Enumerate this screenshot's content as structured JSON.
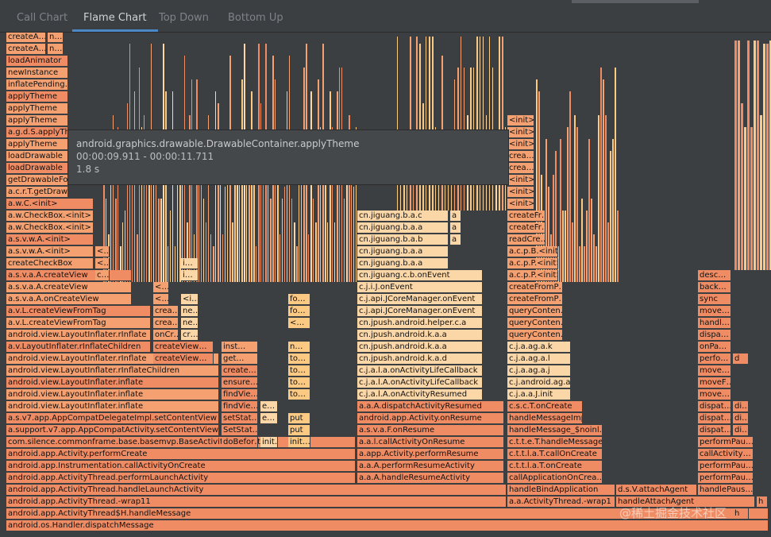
{
  "tabs": [
    {
      "label": "Call Chart",
      "active": false
    },
    {
      "label": "Flame Chart",
      "active": true
    },
    {
      "label": "Top Down",
      "active": false
    },
    {
      "label": "Bottom Up",
      "active": false
    }
  ],
  "tooltip": {
    "method": "android.graphics.drawable.DrawableContainer.applyTheme",
    "range": "00:00:09.911 - 00:00:11.711",
    "duration": "1.8 s"
  },
  "colors": {
    "frame_dark": "#f08c63",
    "frame_medium": "#f4a070",
    "frame_light": "#fbd7a8",
    "background": "#3c3f41",
    "tab_accent": "#4a88c7"
  },
  "frames": {
    "col_a": [
      "createA…",
      "createA…",
      "createA…",
      "loadAnimator",
      "newInstance",
      "inflatePending…",
      "applyTheme",
      "applyTheme",
      "applyTheme",
      "a.g.d.S.applyTheme",
      "applyTheme",
      "loadDrawable",
      "loadDrawable",
      "getDrawableForD…",
      "a.c.r.T.getDrawable",
      "a.w.C.<init>",
      "a.w.CheckBox.<init>",
      "a.w.CheckBox.<init>",
      "a.s.v.w.A.<init>",
      "a.s.v.w.A.<init>",
      "createCheckBox",
      "a.s.v.a.A.createView",
      "a.s.v.a.A.createView",
      "a.s.v.a.A.onCreateView",
      "a.v.L.createViewFromTag",
      "a.v.L.createViewFromTag",
      "android.view.LayoutInflater.rInflate",
      "a.v.LayoutInflater.rInflateChildren",
      "android.view.LayoutInflater.rInflate",
      "android.view.LayoutInflater.rInflateChildren",
      "android.view.LayoutInflater.inflate",
      "android.view.LayoutInflater.inflate",
      "android.view.LayoutInflater.inflate",
      "a.s.v7.app.AppCompatDelegateImpl.setContentView",
      "a.support.v7.app.AppCompatActivity.setContentView"
    ],
    "col_a_small": [
      "n…",
      "n…",
      "n…"
    ],
    "col_b": [
      "<…",
      "<…",
      "c…",
      "<…",
      "<…",
      "crea…",
      "crea…",
      "onCr…",
      "createView…",
      "createView…"
    ],
    "col_b2": [
      "ne…",
      "ne…",
      "cr…",
      "<i…",
      "i…",
      "i…"
    ],
    "col_c": [
      "inst…",
      "get…",
      "create…",
      "ensure…",
      "findVie…",
      "findVie…",
      "setStat…",
      "SetStat…",
      "doBefor…"
    ],
    "col_c2": [
      "e…",
      "e…",
      "init…"
    ],
    "col_d": [
      "fo…",
      "fo…",
      "<…",
      "n…",
      "to…",
      "to…",
      "to…",
      "to…",
      "put",
      "put",
      "init…"
    ],
    "base_left": [
      "com.silence.commonframe.base.basemvp.BaseActivity.onCreate",
      "android.app.Activity.performCreate",
      "android.app.Instrumentation.callActivityOnCreate",
      "android.app.ActivityThread.performLaunchActivity",
      "android.app.ActivityThread.handleLaunchActivity",
      "android.app.ActivityThread.-wrap11",
      "android.app.ActivityThread$H.handleMessage",
      "android.os.Handler.dispatchMessage"
    ],
    "col_e": [
      "cn.jiguang.b.a.c",
      "cn.jiguang.b.a.a",
      "cn.jiguang.b.a.b",
      "cn.jiguang.b.a.a",
      "cn.jiguang.b.a.a",
      "cn.jiguang.c.b.onEvent",
      "c.j.i.J.onEvent",
      "c.j.api.JCoreManager.onEvent",
      "c.j.api.JCoreManager.onEvent",
      "cn.jpush.android.helper.c.a",
      "cn.jpush.android.k.a.a",
      "cn.jpush.android.k.a.a",
      "cn.jpush.android.k.a.d",
      "c.j.a.l.a.onActivityLifeCallback",
      "c.j.a.l.A.onActivityLifeCallback",
      "c.j.a.l.A.onActivityResumed",
      "a.a.A.dispatchActivityResumed",
      "android.app.Activity.onResume",
      "a.s.v.a.F.onResume",
      "a.a.l.callActivityOnResume",
      "a.app.Activity.performResume",
      "a.a.A.performResumeActivity",
      "a.a.A.handleResumeActivity"
    ],
    "col_e_small": [
      "a",
      "a",
      "a"
    ],
    "col_f": [
      "<init>",
      "<init>",
      "<init>",
      "crea…",
      "crea…",
      "<init>",
      "<init>",
      "<init>",
      "createFr…",
      "createFr…",
      "readCre…",
      "a.c.p.B.<init>",
      "a.c.p.P.<init>",
      "a.c.p.P.<init>",
      "createFromP…",
      "createFromP…",
      "queryConten…",
      "queryConten…",
      "queryConten…",
      "c.j.a.ag.a.k",
      "c.j.a.ag.a.l",
      "c.j.a.ag.a.j",
      "c.j.android.ag.a.h",
      "c.j.a.a.J.init",
      "c.s.c.T.onCreate",
      "handleMessageImpl",
      "handleMessage_$noinl…",
      "c.t.t.e.T.handleMessage",
      "c.t.t.l.a.T.callOnCreate",
      "c.t.t.l.a.T.onCreate",
      "callApplicationOnCrea…",
      "handleBindApplication",
      "a.a.ActivityThread.-wrap1"
    ],
    "col_g": [
      "desc…",
      "back…",
      "sync",
      "move…",
      "handl…",
      "dispa…",
      "onPa…",
      "perfo…",
      "move…",
      "moveF…",
      "move…",
      "dispat…",
      "dispat…",
      "dispat…",
      "performPau…",
      "callActivity…",
      "performPau…",
      "performPau…",
      "handlePaus…",
      "handlePaus…"
    ],
    "col_g_small": [
      "d",
      "di…",
      "di…",
      "di…",
      "h"
    ],
    "bottom_mid": [
      "d.s.V.attachAgent",
      "handleAttachAgent",
      "h"
    ]
  },
  "watermark": "@稀土掘金技术社区"
}
